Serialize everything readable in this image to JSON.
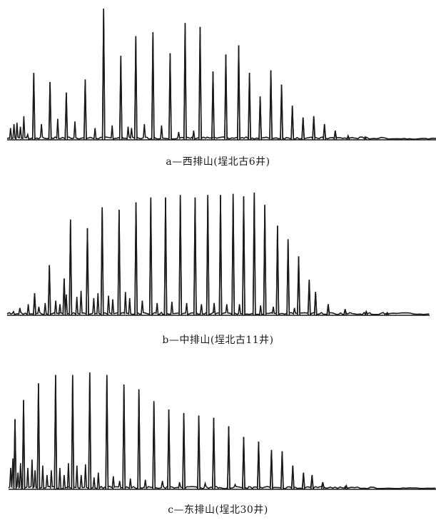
{
  "chart_data": [
    {
      "type": "line",
      "caption": "a—西排山(埕北古6井)",
      "xlim": [
        0,
        100
      ],
      "ylim": [
        0,
        100
      ],
      "peaks": [
        {
          "x": 6.2,
          "y": 51
        },
        {
          "x": 10.0,
          "y": 44
        },
        {
          "x": 13.8,
          "y": 36
        },
        {
          "x": 18.2,
          "y": 46
        },
        {
          "x": 22.5,
          "y": 100
        },
        {
          "x": 26.5,
          "y": 64
        },
        {
          "x": 30.0,
          "y": 79
        },
        {
          "x": 34.0,
          "y": 82
        },
        {
          "x": 38.0,
          "y": 66
        },
        {
          "x": 41.5,
          "y": 89
        },
        {
          "x": 45.0,
          "y": 86
        },
        {
          "x": 48.0,
          "y": 52
        },
        {
          "x": 51.0,
          "y": 65
        },
        {
          "x": 54.0,
          "y": 72
        },
        {
          "x": 56.5,
          "y": 51
        },
        {
          "x": 59.0,
          "y": 33
        },
        {
          "x": 61.5,
          "y": 53
        },
        {
          "x": 64.0,
          "y": 42
        },
        {
          "x": 66.5,
          "y": 26
        },
        {
          "x": 69.0,
          "y": 17
        },
        {
          "x": 71.5,
          "y": 18
        },
        {
          "x": 74.0,
          "y": 12
        },
        {
          "x": 76.5,
          "y": 7
        },
        {
          "x": 79.5,
          "y": 3
        },
        {
          "x": 83.5,
          "y": 2
        }
      ],
      "noise": [
        {
          "x": 0.8,
          "y": 9
        },
        {
          "x": 1.6,
          "y": 12
        },
        {
          "x": 2.3,
          "y": 13
        },
        {
          "x": 3.1,
          "y": 10
        },
        {
          "x": 3.9,
          "y": 18
        },
        {
          "x": 4.8,
          "y": 4
        },
        {
          "x": 8.0,
          "y": 12
        },
        {
          "x": 11.8,
          "y": 16
        },
        {
          "x": 15.8,
          "y": 14
        },
        {
          "x": 20.5,
          "y": 9
        },
        {
          "x": 24.5,
          "y": 11
        },
        {
          "x": 28.2,
          "y": 10
        },
        {
          "x": 29.0,
          "y": 9
        },
        {
          "x": 32.0,
          "y": 12
        },
        {
          "x": 36.0,
          "y": 11
        },
        {
          "x": 40.0,
          "y": 6
        },
        {
          "x": 43.5,
          "y": 7
        }
      ]
    },
    {
      "type": "line",
      "caption": "b—中排山(埕北古11井)",
      "xlim": [
        0,
        100
      ],
      "ylim": [
        0,
        100
      ],
      "peaks": [
        {
          "x": 6.5,
          "y": 18
        },
        {
          "x": 10.0,
          "y": 41
        },
        {
          "x": 13.5,
          "y": 30
        },
        {
          "x": 15.0,
          "y": 78
        },
        {
          "x": 19.0,
          "y": 71
        },
        {
          "x": 22.5,
          "y": 88
        },
        {
          "x": 26.5,
          "y": 86
        },
        {
          "x": 30.5,
          "y": 92
        },
        {
          "x": 34.0,
          "y": 96
        },
        {
          "x": 37.5,
          "y": 96
        },
        {
          "x": 41.0,
          "y": 98
        },
        {
          "x": 44.5,
          "y": 96
        },
        {
          "x": 47.5,
          "y": 98
        },
        {
          "x": 50.5,
          "y": 98
        },
        {
          "x": 53.5,
          "y": 99
        },
        {
          "x": 56.0,
          "y": 97
        },
        {
          "x": 58.5,
          "y": 100
        },
        {
          "x": 61.0,
          "y": 90
        },
        {
          "x": 64.0,
          "y": 73
        },
        {
          "x": 66.5,
          "y": 62
        },
        {
          "x": 69.0,
          "y": 48
        },
        {
          "x": 71.5,
          "y": 29
        },
        {
          "x": 73.0,
          "y": 19
        },
        {
          "x": 76.0,
          "y": 9
        },
        {
          "x": 80.0,
          "y": 5
        },
        {
          "x": 85.0,
          "y": 3
        },
        {
          "x": 90.0,
          "y": 2
        }
      ],
      "noise": [
        {
          "x": 1.5,
          "y": 3
        },
        {
          "x": 3.0,
          "y": 6
        },
        {
          "x": 5.0,
          "y": 9
        },
        {
          "x": 7.5,
          "y": 7
        },
        {
          "x": 9.0,
          "y": 10
        },
        {
          "x": 11.5,
          "y": 12
        },
        {
          "x": 12.5,
          "y": 9
        },
        {
          "x": 14.0,
          "y": 17
        },
        {
          "x": 16.5,
          "y": 15
        },
        {
          "x": 17.5,
          "y": 20
        },
        {
          "x": 20.5,
          "y": 14
        },
        {
          "x": 21.5,
          "y": 18
        },
        {
          "x": 24.0,
          "y": 16
        },
        {
          "x": 25.0,
          "y": 13
        },
        {
          "x": 28.0,
          "y": 19
        },
        {
          "x": 29.0,
          "y": 14
        },
        {
          "x": 32.0,
          "y": 12
        },
        {
          "x": 35.5,
          "y": 10
        },
        {
          "x": 39.0,
          "y": 11
        },
        {
          "x": 42.5,
          "y": 10
        },
        {
          "x": 46.0,
          "y": 9
        },
        {
          "x": 49.0,
          "y": 10
        },
        {
          "x": 52.0,
          "y": 9
        },
        {
          "x": 55.0,
          "y": 9
        },
        {
          "x": 60.0,
          "y": 8
        },
        {
          "x": 63.0,
          "y": 7
        },
        {
          "x": 68.0,
          "y": 6
        }
      ]
    },
    {
      "type": "line",
      "caption": "c—东排山(埕北30井)",
      "xlim": [
        0,
        100
      ],
      "ylim": [
        0,
        100
      ],
      "peaks": [
        {
          "x": 1.5,
          "y": 59
        },
        {
          "x": 3.5,
          "y": 75
        },
        {
          "x": 7.0,
          "y": 89
        },
        {
          "x": 11.0,
          "y": 96
        },
        {
          "x": 15.0,
          "y": 96
        },
        {
          "x": 19.0,
          "y": 98
        },
        {
          "x": 23.0,
          "y": 96
        },
        {
          "x": 27.0,
          "y": 88
        },
        {
          "x": 30.5,
          "y": 84
        },
        {
          "x": 34.0,
          "y": 74
        },
        {
          "x": 37.5,
          "y": 67
        },
        {
          "x": 41.0,
          "y": 64
        },
        {
          "x": 44.5,
          "y": 62
        },
        {
          "x": 48.0,
          "y": 60
        },
        {
          "x": 51.5,
          "y": 53
        },
        {
          "x": 55.0,
          "y": 44
        },
        {
          "x": 58.5,
          "y": 40
        },
        {
          "x": 61.5,
          "y": 33
        },
        {
          "x": 64.0,
          "y": 32
        },
        {
          "x": 66.5,
          "y": 20
        },
        {
          "x": 69.0,
          "y": 14
        },
        {
          "x": 71.0,
          "y": 12
        },
        {
          "x": 73.5,
          "y": 6
        },
        {
          "x": 79.0,
          "y": 3
        }
      ],
      "noise": [
        {
          "x": 0.5,
          "y": 18
        },
        {
          "x": 1.0,
          "y": 26
        },
        {
          "x": 2.2,
          "y": 14
        },
        {
          "x": 2.8,
          "y": 22
        },
        {
          "x": 4.5,
          "y": 18
        },
        {
          "x": 5.5,
          "y": 25
        },
        {
          "x": 6.2,
          "y": 16
        },
        {
          "x": 8.0,
          "y": 20
        },
        {
          "x": 9.0,
          "y": 12
        },
        {
          "x": 10.0,
          "y": 16
        },
        {
          "x": 12.0,
          "y": 18
        },
        {
          "x": 13.0,
          "y": 12
        },
        {
          "x": 14.0,
          "y": 22
        },
        {
          "x": 16.0,
          "y": 20
        },
        {
          "x": 17.0,
          "y": 12
        },
        {
          "x": 18.0,
          "y": 21
        },
        {
          "x": 20.0,
          "y": 10
        },
        {
          "x": 21.0,
          "y": 14
        },
        {
          "x": 24.5,
          "y": 11
        },
        {
          "x": 26.0,
          "y": 7
        },
        {
          "x": 28.5,
          "y": 9
        },
        {
          "x": 32.0,
          "y": 8
        },
        {
          "x": 36.0,
          "y": 7
        },
        {
          "x": 40.0,
          "y": 6
        },
        {
          "x": 46.0,
          "y": 5
        },
        {
          "x": 53.0,
          "y": 4
        }
      ]
    }
  ]
}
